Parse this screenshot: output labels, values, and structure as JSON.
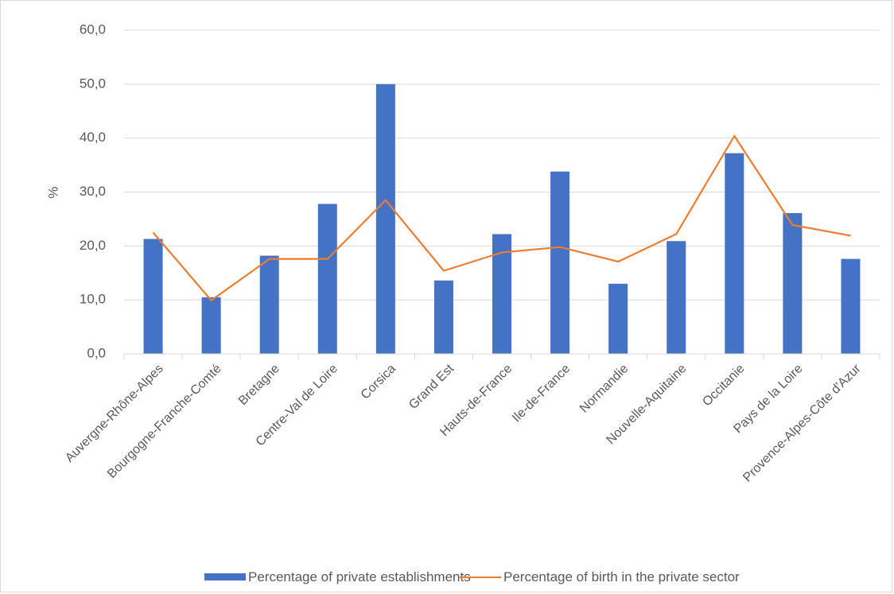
{
  "chart_data": {
    "type": "bar",
    "title": "",
    "xlabel": "",
    "ylabel": "%",
    "ylim": [
      0,
      60
    ],
    "yticks": [
      "0,0",
      "10,0",
      "20,0",
      "30,0",
      "40,0",
      "50,0",
      "60,0"
    ],
    "grid": true,
    "legend_position": "bottom",
    "categories": [
      "Auvergne-Rhône-Alpes",
      "Bourgogne-Franche-Comté",
      "Bretagne",
      "Centre-Val de Loire",
      "Corsica",
      "Grand Est",
      "Hauts-de-France",
      "Ile-de-France",
      "Normandie",
      "Nouvelle-Aquitaine",
      "Occitanie",
      "Pays de la Loire",
      "Provence-Alpes-Côte d'Azur"
    ],
    "series": [
      {
        "name": "Percentage of private establishments",
        "type": "bar",
        "color": "#4472c4",
        "values": [
          21.3,
          10.5,
          18.2,
          27.8,
          50.0,
          13.6,
          22.2,
          33.8,
          13.0,
          20.9,
          37.2,
          26.1,
          17.6
        ]
      },
      {
        "name": "Percentage of birth in the private sector",
        "type": "line",
        "color": "#ed7d31",
        "values": [
          22.5,
          9.9,
          17.6,
          17.6,
          28.5,
          15.4,
          18.8,
          19.8,
          17.1,
          22.2,
          40.4,
          23.9,
          21.9
        ]
      }
    ]
  }
}
